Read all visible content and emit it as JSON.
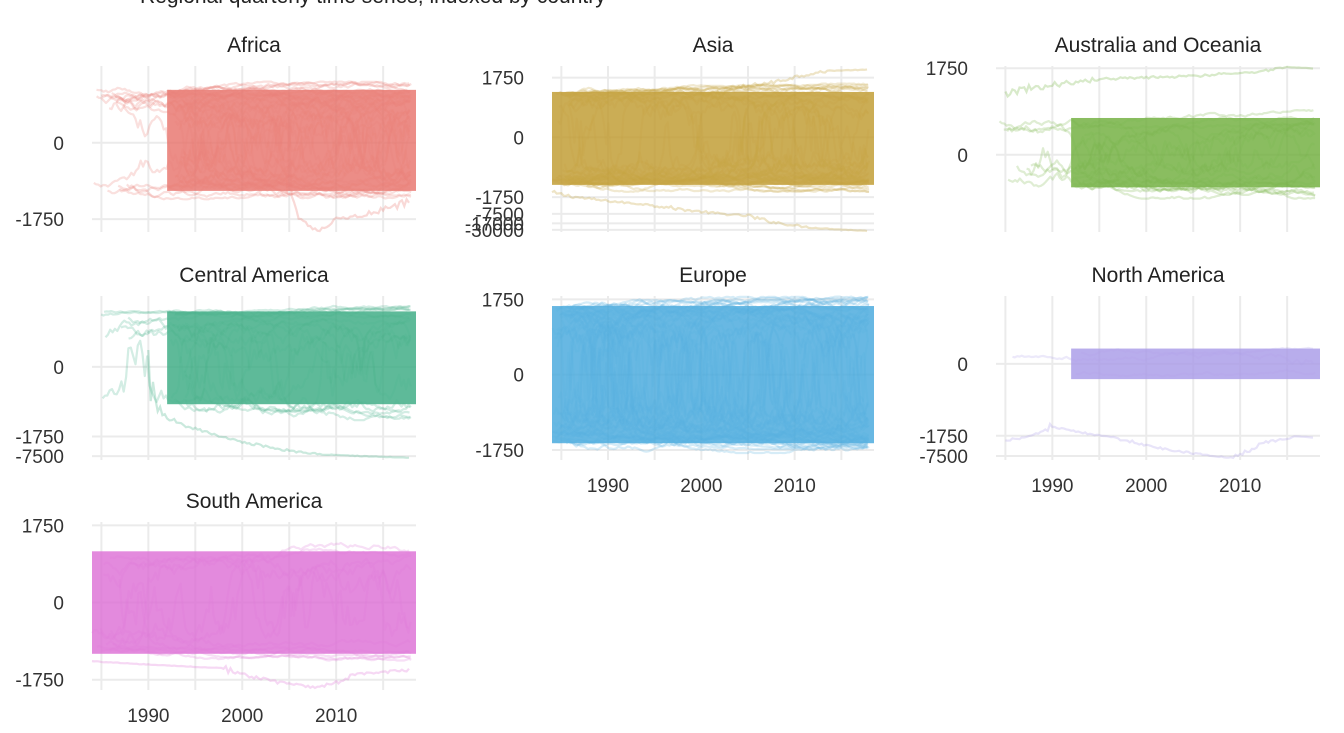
{
  "chart_data": {
    "type": "line",
    "title": "Regional quarterly time series, indexed by country",
    "xlabel": "",
    "ylabel": "",
    "scale": "pseudo-log (signed)",
    "grid": true,
    "legend": "none",
    "x_ticks": [
      1990,
      2000,
      2010
    ],
    "xlim": [
      1984,
      2018.5
    ],
    "panels": [
      {
        "title": "Africa",
        "color": "#e8736b",
        "y_ticks": [
          {
            "label": "0",
            "value": 0
          },
          {
            "label": "-1750",
            "value": -1750
          }
        ],
        "ylim": [
          -4200,
          1800
        ],
        "line_count": 45,
        "band_start": 1992.0,
        "band_range": [
          -250,
          350
        ],
        "notes": "many overlapping country lines around 0; several lines dip to about -4000 near 2008"
      },
      {
        "title": "Asia",
        "color": "#c09a2f",
        "y_ticks": [
          {
            "label": "1750",
            "value": 1750
          },
          {
            "label": "0",
            "value": 0
          },
          {
            "label": "-1750",
            "value": -1750
          },
          {
            "label": "-7500",
            "value": -7500
          },
          {
            "label": "-17000",
            "value": -17000
          },
          {
            "label": "-30000",
            "value": -30000
          }
        ],
        "ylim": [
          -36000,
          4800
        ],
        "line_count": 40,
        "band_start": 1984.0,
        "band_range": [
          -600,
          500
        ],
        "notes": "one line rises to about 3500 after 2005; one line declines to about -35000 by 2018"
      },
      {
        "title": "Australia and Oceania",
        "color": "#6fae3c",
        "y_ticks": [
          {
            "label": "1750",
            "value": 1750
          },
          {
            "label": "0",
            "value": 0
          }
        ],
        "ylim": [
          -1000,
          2000
        ],
        "line_count": 20,
        "band_start": 1992.0,
        "band_range": [
          -60,
          80
        ],
        "notes": "one line rises from about 400 in 1985 to about 1900 in 2015"
      },
      {
        "title": "Central America",
        "color": "#3aab82",
        "y_ticks": [
          {
            "label": "0",
            "value": 0
          },
          {
            "label": "-1750",
            "value": -1750
          },
          {
            "label": "-7500",
            "value": -7500
          }
        ],
        "ylim": [
          -10000,
          1900
        ],
        "line_count": 20,
        "band_start": 1992.0,
        "band_range": [
          -150,
          600
        ],
        "notes": "one line drops from about 0 to about -7500 after 1995"
      },
      {
        "title": "Europe",
        "color": "#46a8dd",
        "y_ticks": [
          {
            "label": "1750",
            "value": 1750
          },
          {
            "label": "0",
            "value": 0
          },
          {
            "label": "-1750",
            "value": -1750
          }
        ],
        "ylim": [
          -3500,
          2200
        ],
        "line_count": 60,
        "band_start": 1984.0,
        "band_range": [
          -1100,
          1100
        ],
        "notes": "dense spread between about -1750 and 1750"
      },
      {
        "title": "North America",
        "color": "#a99ae8",
        "y_ticks": [
          {
            "label": "0",
            "value": 0
          },
          {
            "label": "-1750",
            "value": -1750
          },
          {
            "label": "-7500",
            "value": -7500
          }
        ],
        "ylim": [
          -10000,
          1300
        ],
        "line_count": 3,
        "band_start": 1992.0,
        "band_range": [
          -20,
          20
        ],
        "notes": "flat line at 0 from 1992; one line falls from about -1000 in 1990 to about -8000 near 2009, then recovers"
      },
      {
        "title": "South America",
        "color": "#dd6fd5",
        "y_ticks": [
          {
            "label": "1750",
            "value": 1750
          },
          {
            "label": "0",
            "value": 0
          },
          {
            "label": "-1750",
            "value": -1750
          }
        ],
        "ylim": [
          -3500,
          2200
        ],
        "line_count": 12,
        "band_start": 1984.0,
        "band_range": [
          -300,
          300
        ],
        "notes": "lines mostly between -1750 and 1750; one dips to about -3000 near 2008"
      }
    ]
  }
}
